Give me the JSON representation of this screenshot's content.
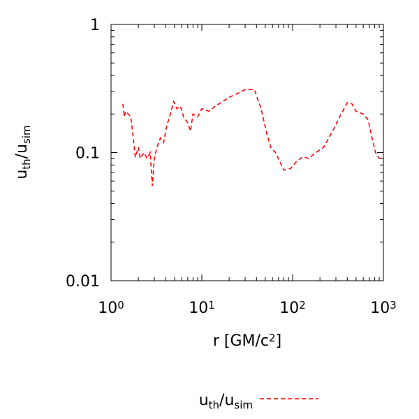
{
  "chart_data": {
    "type": "line",
    "xlabel": [
      "r [GM/c",
      "2",
      "]"
    ],
    "ylabel": [
      "u",
      "th",
      "/u",
      "sim"
    ],
    "x": [
      1.35,
      1.4,
      1.45,
      1.55,
      1.65,
      1.75,
      1.85,
      2.0,
      2.1,
      2.3,
      2.5,
      2.7,
      2.85,
      3.0,
      3.2,
      3.5,
      3.8,
      4.1,
      4.5,
      4.9,
      5.3,
      5.8,
      6.3,
      7.0,
      7.5,
      8.0,
      9.0,
      10,
      12,
      14,
      17,
      20,
      25,
      30,
      38,
      45,
      52,
      58,
      65,
      80,
      95,
      110,
      130,
      150,
      180,
      220,
      280,
      330,
      400,
      450,
      500,
      600,
      680,
      750,
      820,
      900,
      1000
    ],
    "series": [
      {
        "name": [
          "u",
          "th",
          "/u",
          "sim"
        ],
        "color": "#ff0000",
        "dash": true,
        "values": [
          0.24,
          0.19,
          0.21,
          0.2,
          0.19,
          0.134,
          0.092,
          0.11,
          0.09,
          0.1,
          0.09,
          0.1,
          0.055,
          0.09,
          0.11,
          0.13,
          0.12,
          0.16,
          0.2,
          0.25,
          0.22,
          0.23,
          0.19,
          0.17,
          0.147,
          0.2,
          0.19,
          0.22,
          0.21,
          0.23,
          0.25,
          0.27,
          0.29,
          0.31,
          0.31,
          0.22,
          0.14,
          0.108,
          0.1,
          0.073,
          0.075,
          0.085,
          0.093,
          0.09,
          0.1,
          0.11,
          0.15,
          0.19,
          0.245,
          0.24,
          0.21,
          0.2,
          0.18,
          0.13,
          0.1,
          0.09,
          0.09
        ]
      }
    ],
    "xlim": [
      1,
      1000
    ],
    "ylim": [
      0.01,
      1
    ],
    "xticks": [
      {
        "value": 1,
        "label": [
          "10",
          "0"
        ]
      },
      {
        "value": 10,
        "label": [
          "10",
          "1"
        ]
      },
      {
        "value": 100,
        "label": [
          "10",
          "2"
        ]
      },
      {
        "value": 1000,
        "label": [
          "10",
          "3"
        ]
      }
    ],
    "yticks": [
      0.01,
      0.1,
      1
    ],
    "xscale": "log",
    "yscale": "log",
    "minor_ticks": true,
    "legend": "bottom"
  }
}
